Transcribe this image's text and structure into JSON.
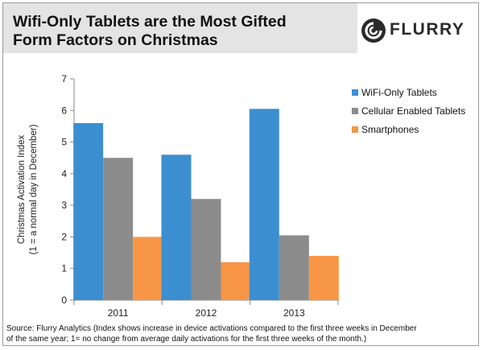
{
  "header": {
    "title_line1": "Wifi-Only Tablets are the Most Gifted",
    "title_line2": "Form Factors on Christmas",
    "logo_text": "FLURRY"
  },
  "chart_data": {
    "type": "bar",
    "title": "Wifi-Only Tablets are the Most Gifted Form Factors on Christmas",
    "ylabel": "Christmas Activation Index",
    "ylabel_sub": "(1 = a normal day in December)",
    "xlabel": "",
    "categories": [
      "2011",
      "2012",
      "2013"
    ],
    "ylim": [
      0,
      7
    ],
    "yticks": [
      0,
      1,
      2,
      3,
      4,
      5,
      6,
      7
    ],
    "grid": false,
    "legend_position": "right",
    "series": [
      {
        "name": "WiFi-Only Tablets",
        "color": "#3b8fd0",
        "values": [
          5.6,
          4.6,
          6.05
        ]
      },
      {
        "name": "Cellular Enabled Tablets",
        "color": "#8c8c8c",
        "values": [
          4.5,
          3.2,
          2.05
        ]
      },
      {
        "name": "Smartphones",
        "color": "#f79646",
        "values": [
          2.0,
          1.2,
          1.4
        ]
      }
    ]
  },
  "footer": {
    "source_line1": "Source: Flurry Analytics (Index shows increase in device activations compared to the first three weeks in December",
    "source_line2": "of the same year; 1= no change from average daily activations for the first three weeks of the month.)"
  }
}
